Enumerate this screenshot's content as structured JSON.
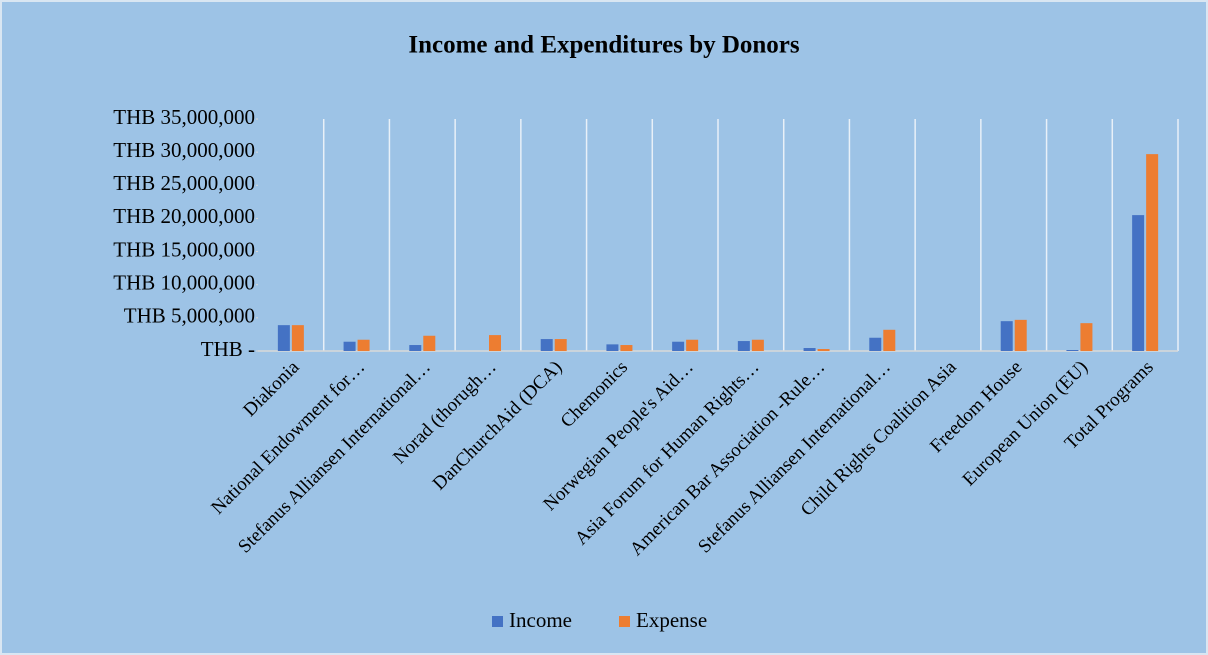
{
  "chart_data": {
    "type": "bar",
    "title": "Income and Expenditures by Donors",
    "categories": [
      "Diakonia",
      "National Endowment for…",
      "Stefanus Alliansen International…",
      "Norad (thorugh…",
      "DanChurchAid (DCA)",
      "Chemonics",
      "Norwegian People's Aid…",
      "Asia Forum for Human Rights…",
      "American Bar Association -Rule…",
      "Stefanus Alliansen International…",
      "Child Rights Coalition Asia",
      "Freedom House",
      "European Union (EU)",
      "Total Programs"
    ],
    "series": [
      {
        "name": "Income",
        "color": "#4472c4",
        "values": [
          3900000,
          1400000,
          900000,
          0,
          1800000,
          1000000,
          1400000,
          1500000,
          450000,
          2000000,
          0,
          4500000,
          150000,
          20500000
        ]
      },
      {
        "name": "Expense",
        "color": "#ed7d31",
        "values": [
          3900000,
          1700000,
          2300000,
          2400000,
          1800000,
          900000,
          1700000,
          1700000,
          300000,
          3200000,
          0,
          4700000,
          4200000,
          29700000
        ]
      }
    ],
    "ylim": [
      0,
      35000000
    ],
    "yticks": [
      {
        "value": 0,
        "label": "THB -"
      },
      {
        "value": 5000000,
        "label": "THB 5,000,000"
      },
      {
        "value": 10000000,
        "label": "THB 10,000,000"
      },
      {
        "value": 15000000,
        "label": "THB 15,000,000"
      },
      {
        "value": 20000000,
        "label": "THB 20,000,000"
      },
      {
        "value": 25000000,
        "label": "THB 25,000,000"
      },
      {
        "value": 30000000,
        "label": "THB 30,000,000"
      },
      {
        "value": 35000000,
        "label": "THB 35,000,000"
      }
    ],
    "legend": "bottom"
  }
}
